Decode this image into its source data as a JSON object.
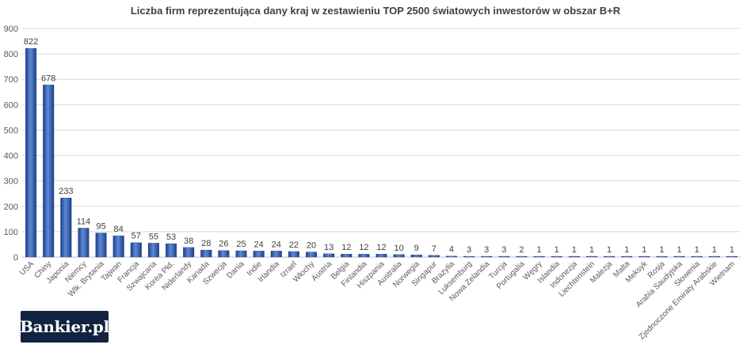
{
  "chart_data": {
    "type": "bar",
    "title": "Liczba firm reprezentująca dany kraj w zestawieniu TOP 2500 światowych inwestorów w obszar B+R",
    "xlabel": "",
    "ylabel": "",
    "ylim": [
      0,
      900
    ],
    "yticks": [
      0,
      100,
      200,
      300,
      400,
      500,
      600,
      700,
      800,
      900
    ],
    "grid": true,
    "legend": "none",
    "data_labels": true,
    "bar_color": "#2f5bb0",
    "categories": [
      "USA",
      "Chiny",
      "Japonia",
      "Niemcy",
      "Wlk. Brytania",
      "Tajwan",
      "Francja",
      "Szwajcaria",
      "Korea Płd.",
      "Niderlandy",
      "Kanada",
      "Szwecja",
      "Dania",
      "Indie",
      "Irlandia",
      "Izrael",
      "Włochy",
      "Austria",
      "Belgia",
      "Finlandia",
      "Hiszpania",
      "Australia",
      "Norwegia",
      "Singapur",
      "Brazylia",
      "Luksemburg",
      "Nowa Zelandia",
      "Turcja",
      "Portugalia",
      "Węgry",
      "Islandia",
      "Indonezja",
      "Liechtenstein",
      "Malezja",
      "Malta",
      "Meksyk",
      "Rosja",
      "Arabia Saudyjska",
      "Słowenia",
      "Zjednoczone Emiraty Arabskie",
      "Wietnam"
    ],
    "values": [
      822,
      678,
      233,
      114,
      95,
      84,
      57,
      55,
      53,
      38,
      28,
      26,
      25,
      24,
      24,
      22,
      20,
      13,
      12,
      12,
      12,
      10,
      9,
      7,
      4,
      3,
      3,
      3,
      2,
      1,
      1,
      1,
      1,
      1,
      1,
      1,
      1,
      1,
      1,
      1,
      1
    ]
  },
  "logo": {
    "text": "Bankier.pl"
  }
}
